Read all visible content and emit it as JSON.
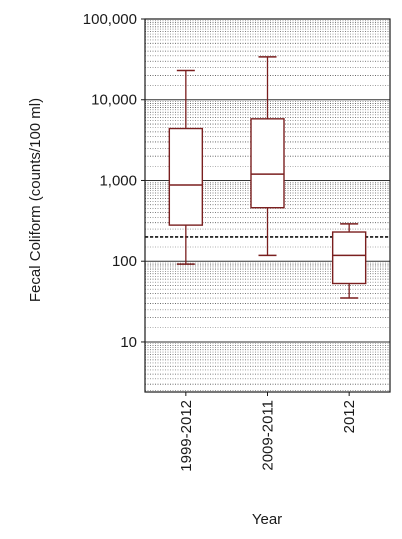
{
  "chart_data": {
    "type": "box",
    "title": "",
    "xlabel": "Year",
    "ylabel": "Fecal Coliform (counts/100 ml)",
    "y_scale": "log",
    "ylim": [
      2.4,
      100000
    ],
    "y_ticks": [
      {
        "value": 10,
        "label": "10"
      },
      {
        "value": 100,
        "label": "100"
      },
      {
        "value": 1000,
        "label": "1,000"
      },
      {
        "value": 10000,
        "label": "10,000"
      },
      {
        "value": 100000,
        "label": "100,000"
      }
    ],
    "reference_line": {
      "value": 200,
      "style": "dashed"
    },
    "grid": true,
    "categories": [
      "1999-2012",
      "2009-2011",
      "2012"
    ],
    "boxes": [
      {
        "category": "1999-2012",
        "min": 92,
        "q1": 280,
        "median": 880,
        "q3": 4400,
        "max": 23000
      },
      {
        "category": "2009-2011",
        "min": 118,
        "q1": 460,
        "median": 1200,
        "q3": 5800,
        "max": 34000
      },
      {
        "category": "2012",
        "min": 35,
        "q1": 53,
        "median": 118,
        "q3": 230,
        "max": 290
      }
    ],
    "colors": {
      "box": "#7a1f1f",
      "grid": "#333333",
      "axis": "#1a1a1a"
    }
  }
}
